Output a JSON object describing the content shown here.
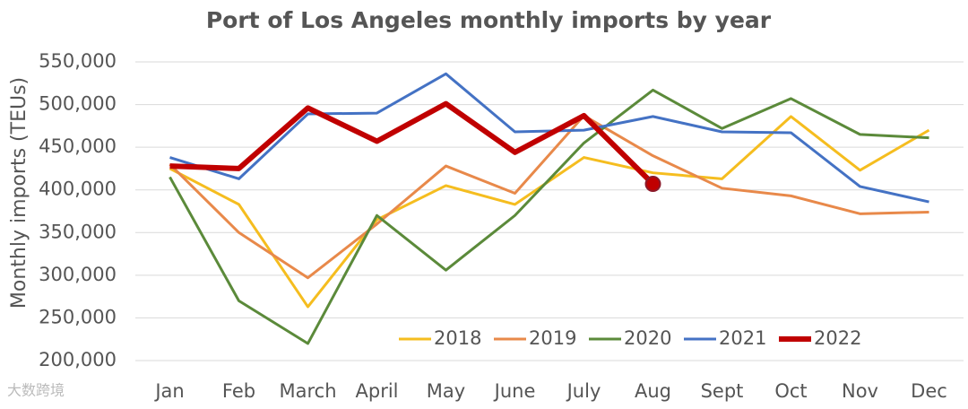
{
  "chart_data": {
    "type": "line",
    "title": "Port of Los Angeles monthly imports by year",
    "y_label": "Monthly imports (TEUs)",
    "watermark": "大数跨境",
    "categories": [
      "Jan",
      "Feb",
      "March",
      "April",
      "May",
      "June",
      "July",
      "Aug",
      "Sept",
      "Oct",
      "Nov",
      "Dec"
    ],
    "series": [
      {
        "name": "2018",
        "color": "#f5bd1f",
        "line_width": 3,
        "values": [
          425000,
          383000,
          263000,
          365000,
          405000,
          383000,
          438000,
          420000,
          413000,
          486000,
          423000,
          470000
        ]
      },
      {
        "name": "2019",
        "color": "#e8894a",
        "line_width": 3,
        "values": [
          430000,
          350000,
          297000,
          360000,
          428000,
          396000,
          487000,
          440000,
          402000,
          393000,
          372000,
          374000
        ]
      },
      {
        "name": "2020",
        "color": "#5b8a3a",
        "line_width": 3,
        "values": [
          415000,
          270000,
          220000,
          370000,
          306000,
          370000,
          455000,
          517000,
          472000,
          507000,
          465000,
          461000
        ]
      },
      {
        "name": "2021",
        "color": "#4472c4",
        "line_width": 3,
        "values": [
          438000,
          413000,
          489000,
          490000,
          536000,
          468000,
          470000,
          486000,
          468000,
          467000,
          404000,
          386000
        ]
      },
      {
        "name": "2022",
        "color": "#c00000",
        "line_width": 6,
        "marker_last": true,
        "values": [
          428000,
          425000,
          496000,
          457000,
          501000,
          444000,
          487000,
          407000,
          null,
          null,
          null,
          null
        ]
      }
    ],
    "ylim": [
      200000,
      550000
    ],
    "yticks": [
      {
        "value": 200000,
        "label": "200,000"
      },
      {
        "value": 250000,
        "label": "250,000"
      },
      {
        "value": 300000,
        "label": "300,000"
      },
      {
        "value": 350000,
        "label": "350,000"
      },
      {
        "value": 400000,
        "label": "400,000"
      },
      {
        "value": 450000,
        "label": "450,000"
      },
      {
        "value": 500000,
        "label": "500,000"
      },
      {
        "value": 550000,
        "label": "550,000"
      }
    ],
    "grid": true,
    "legend": "bottom"
  }
}
